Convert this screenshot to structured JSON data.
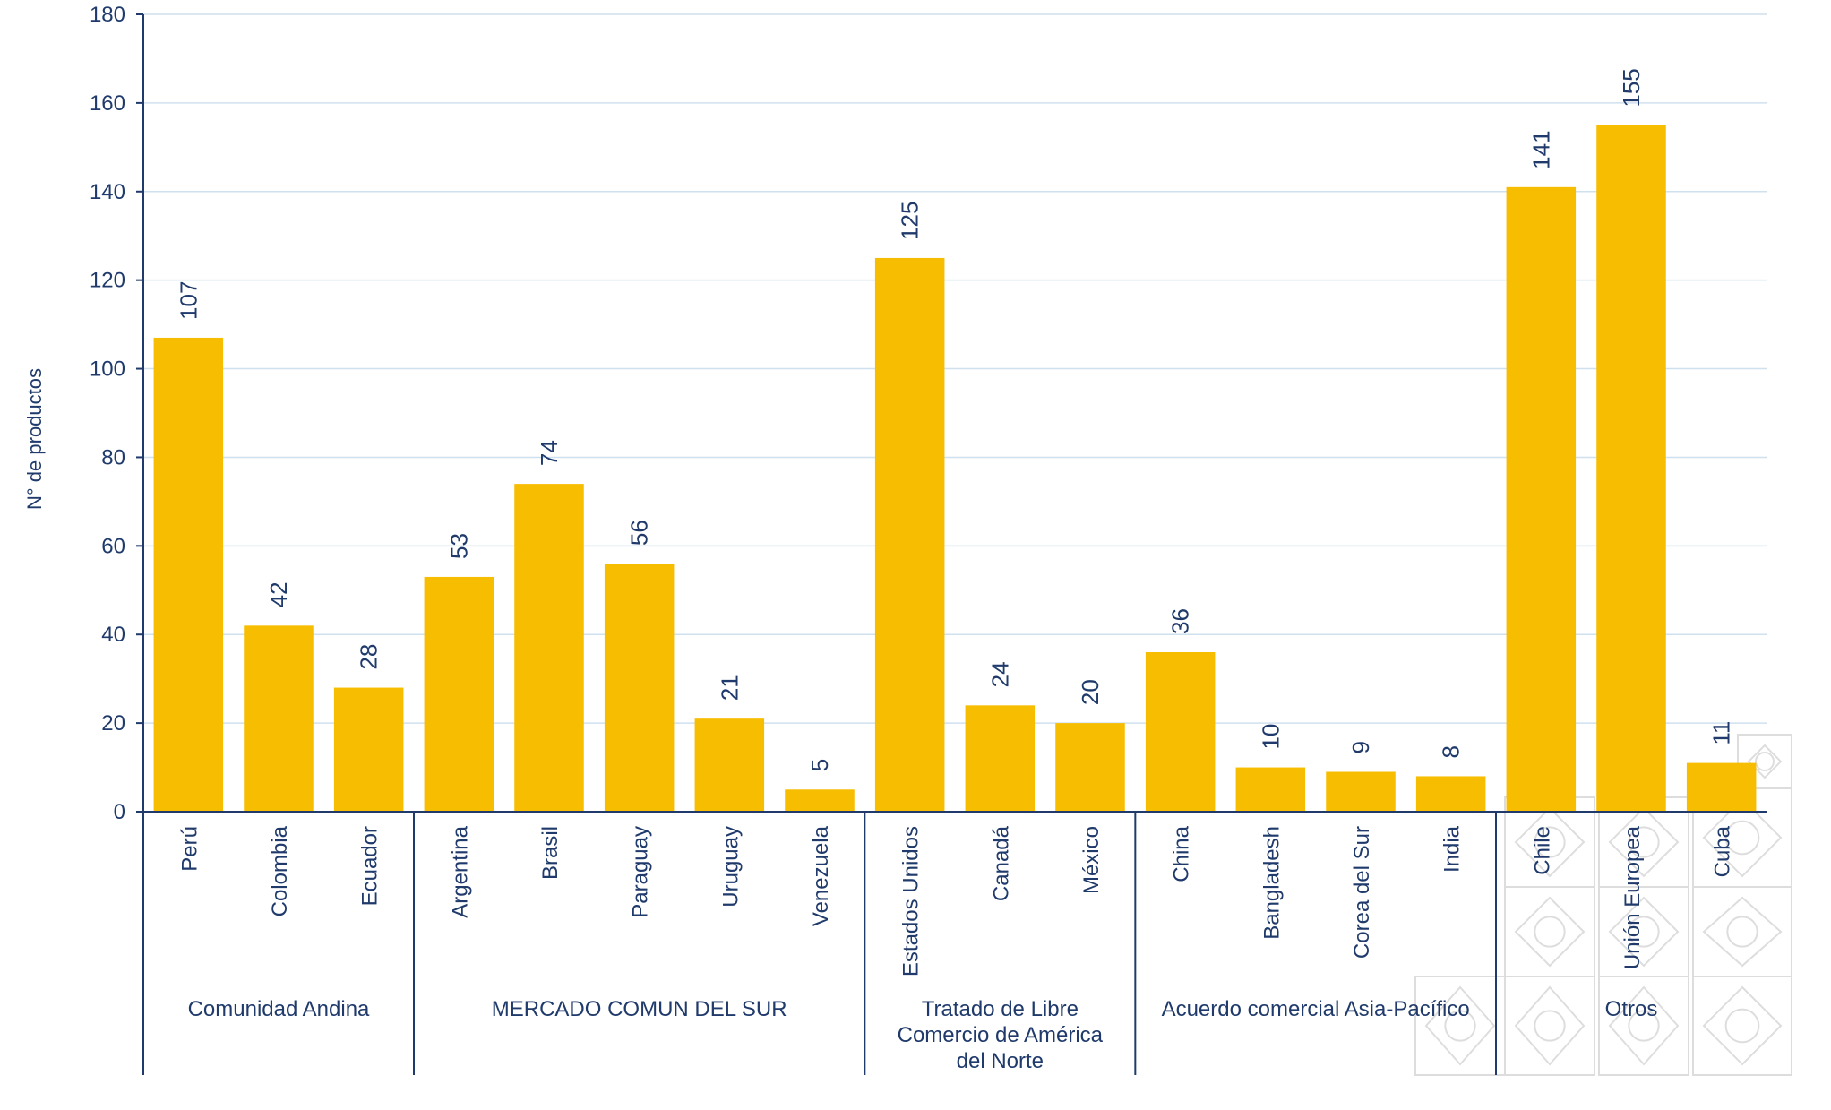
{
  "chart_data": {
    "type": "bar",
    "ylabel": "N° de productos",
    "ylim": [
      0,
      180
    ],
    "yticks": [
      0,
      20,
      40,
      60,
      80,
      100,
      120,
      140,
      160,
      180
    ],
    "grid": true,
    "bar_color": "#F7BD00",
    "text_color": "#1F3A6B",
    "grid_color": "#CFE0EE",
    "categories": [
      "Perú",
      "Colombia",
      "Ecuador",
      "Argentina",
      "Brasil",
      "Paraguay",
      "Uruguay",
      "Venezuela",
      "Estados Unidos",
      "Canadá",
      "México",
      "China",
      "Bangladesh",
      "Corea del Sur",
      "India",
      "Chile",
      "Unión Europea",
      "Cuba"
    ],
    "values": [
      107,
      42,
      28,
      53,
      74,
      56,
      21,
      5,
      125,
      24,
      20,
      36,
      10,
      9,
      8,
      141,
      155,
      11
    ],
    "groups": [
      {
        "lines": [
          "Comunidad Andina"
        ],
        "count": 3
      },
      {
        "lines": [
          "MERCADO COMUN DEL SUR"
        ],
        "count": 5
      },
      {
        "lines": [
          "Tratado de Libre",
          "Comercio de América",
          "del Norte"
        ],
        "count": 3
      },
      {
        "lines": [
          "Acuerdo comercial Asia-Pacífico"
        ],
        "count": 4
      },
      {
        "lines": [
          "Otros"
        ],
        "count": 3
      }
    ]
  }
}
